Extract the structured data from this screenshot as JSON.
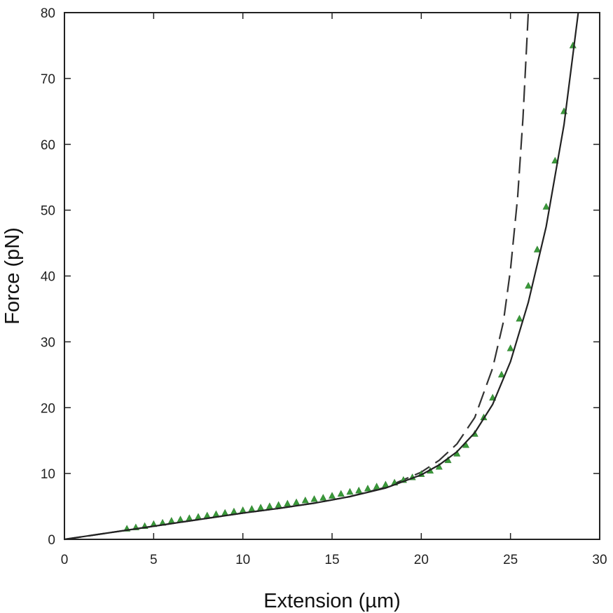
{
  "chart_data": {
    "type": "scatter",
    "title": "",
    "xlabel": "Extension (µm)",
    "ylabel": "Force (pN)",
    "xlim": [
      0,
      30
    ],
    "ylim": [
      0,
      80
    ],
    "x_ticks": [
      0,
      5,
      10,
      15,
      20,
      25,
      30
    ],
    "y_ticks": [
      0,
      10,
      20,
      30,
      40,
      50,
      60,
      70,
      80
    ],
    "x_tick_labels": [
      "0",
      "5",
      "10",
      "15",
      "20",
      "25",
      "30"
    ],
    "y_tick_labels": [
      "0",
      "10",
      "20",
      "30",
      "40",
      "50",
      "60",
      "70",
      "80"
    ],
    "grid": false,
    "colors": {
      "points": "#3a9a3a",
      "point_edge": "#2e7d2e",
      "fit": "#222222",
      "dashed": "#333333",
      "frame": "#222222"
    },
    "series": [
      {
        "kind": "points",
        "marker": "triangle",
        "x": [
          3.5,
          4.0,
          4.5,
          5.0,
          5.5,
          6.0,
          6.5,
          7.0,
          7.5,
          8.0,
          8.5,
          9.0,
          9.5,
          10.0,
          10.5,
          11.0,
          11.5,
          12.0,
          12.5,
          13.0,
          13.5,
          14.0,
          14.5,
          15.0,
          15.5,
          16.0,
          16.5,
          17.0,
          17.5,
          18.0,
          18.5,
          19.0,
          19.5,
          20.0,
          20.5,
          21.0,
          21.5,
          22.0,
          22.5,
          23.0,
          23.5,
          24.0,
          24.5,
          25.0,
          25.5,
          26.0,
          26.5,
          27.0,
          27.5,
          28.0,
          28.5
        ],
        "y": [
          1.6,
          1.8,
          2.0,
          2.3,
          2.5,
          2.8,
          3.0,
          3.2,
          3.4,
          3.6,
          3.8,
          4.0,
          4.2,
          4.4,
          4.6,
          4.8,
          5.0,
          5.2,
          5.4,
          5.6,
          5.9,
          6.1,
          6.3,
          6.6,
          6.9,
          7.2,
          7.4,
          7.7,
          8.0,
          8.3,
          8.6,
          9.0,
          9.4,
          9.9,
          10.4,
          11.0,
          12.0,
          13.0,
          14.3,
          16.0,
          18.5,
          21.5,
          25.0,
          29.0,
          33.5,
          38.5,
          44.0,
          50.5,
          57.5,
          65.0,
          75.0
        ]
      },
      {
        "kind": "fit-line",
        "style": "solid",
        "x": [
          0,
          2,
          4,
          6,
          8,
          10,
          12,
          14,
          16,
          18,
          20,
          21,
          22,
          23,
          24,
          25,
          26,
          27,
          28,
          28.8
        ],
        "y": [
          0,
          0.8,
          1.6,
          2.4,
          3.2,
          4.0,
          4.7,
          5.5,
          6.5,
          7.8,
          9.8,
          11.3,
          13.3,
          16.2,
          20.5,
          27.0,
          36.0,
          47.5,
          63.0,
          80.0
        ]
      },
      {
        "kind": "model-line",
        "style": "dashed",
        "x": [
          0,
          2,
          4,
          6,
          8,
          10,
          12,
          14,
          16,
          18,
          20,
          21,
          22,
          23,
          24,
          24.6,
          25.0,
          25.4,
          25.7,
          26.0
        ],
        "y": [
          0,
          0.8,
          1.6,
          2.4,
          3.2,
          4.0,
          4.7,
          5.5,
          6.5,
          7.9,
          10.2,
          12.0,
          14.5,
          18.5,
          26.0,
          33.0,
          41.0,
          52.0,
          64.0,
          80.0
        ]
      }
    ]
  }
}
